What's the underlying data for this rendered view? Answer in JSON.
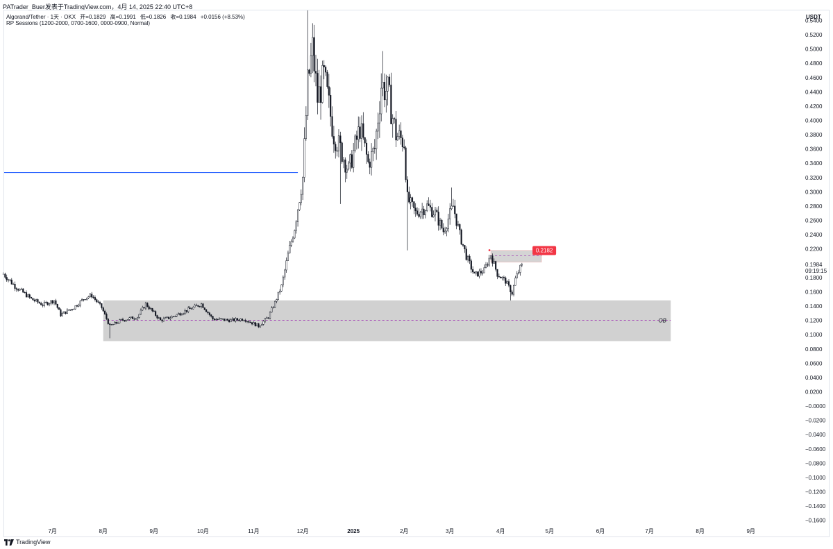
{
  "header": {
    "caption": "PATrader_Buer发表于TradingView.com，4月 14, 2025 22:40 UTC+8",
    "symbol": "Algorand/Tether · 1天 · OKX",
    "ohlc": {
      "open_label": "开=0.1829",
      "high_label": "高=0.1991",
      "low_label": "低=0.1826",
      "close_label": "收=0.1984",
      "change_label": "+0.0156 (+8.53%)"
    },
    "indicator": "RP Sessions (1200-2000, 0700-1600, 0000-0900, Normal)"
  },
  "footer": {
    "brand": "TradingView",
    "logo_icon": "tradingview-logo-icon"
  },
  "colors": {
    "candle": "#131722",
    "ob_box": "#d1d1d1",
    "blue_line": "#2962ff",
    "dashed_line": "#9c27b0",
    "price_label_bg": "#f23645"
  },
  "chart_data": {
    "type": "candlestick",
    "currency_label": "USDT",
    "ylim": [
      -0.17,
      0.555
    ],
    "y_ticks": [
      0.54,
      0.52,
      0.5,
      0.48,
      0.46,
      0.44,
      0.42,
      0.4,
      0.38,
      0.36,
      0.34,
      0.32,
      0.3,
      0.28,
      0.26,
      0.24,
      0.22,
      0.2,
      0.18,
      0.16,
      0.14,
      0.12,
      0.1,
      0.08,
      0.06,
      0.04,
      0.02,
      0.0,
      -0.02,
      -0.04,
      -0.06,
      -0.08,
      -0.1,
      -0.12,
      -0.14,
      -0.16
    ],
    "y_tick_labels": [
      "0.5400",
      "0.5200",
      "0.5000",
      "0.4800",
      "0.4600",
      "0.4400",
      "0.4200",
      "0.4000",
      "0.3800",
      "0.3600",
      "0.3400",
      "0.3200",
      "0.3000",
      "0.2800",
      "0.2600",
      "0.2400",
      "0.2200",
      "",
      "0.1800",
      "0.1600",
      "0.1400",
      "0.1200",
      "0.1000",
      "0.0800",
      "0.0600",
      "0.0400",
      "0.0200",
      "−0.0000",
      "−0.0200",
      "−0.0400",
      "−0.0600",
      "−0.0800",
      "−0.1000",
      "−0.1200",
      "−0.1400",
      "−0.1600"
    ],
    "x_range": [
      "2024-06-01",
      "2025-09-30"
    ],
    "x_ticks": [
      {
        "date": "2024-07-01",
        "label": "7月"
      },
      {
        "date": "2024-08-01",
        "label": "8月"
      },
      {
        "date": "2024-09-01",
        "label": "9月"
      },
      {
        "date": "2024-10-01",
        "label": "10月"
      },
      {
        "date": "2024-11-01",
        "label": "11月"
      },
      {
        "date": "2024-12-01",
        "label": "12月"
      },
      {
        "date": "2025-01-01",
        "label": "2025",
        "bold": true
      },
      {
        "date": "2025-02-01",
        "label": "2月"
      },
      {
        "date": "2025-03-01",
        "label": "3月"
      },
      {
        "date": "2025-04-01",
        "label": "4月"
      },
      {
        "date": "2025-05-01",
        "label": "5月"
      },
      {
        "date": "2025-06-01",
        "label": "6月"
      },
      {
        "date": "2025-07-01",
        "label": "7月"
      },
      {
        "date": "2025-08-01",
        "label": "8月"
      },
      {
        "date": "2025-09-01",
        "label": "9月"
      }
    ],
    "data_start": "2024-06-01",
    "data_end": "2025-04-14",
    "price_path": [
      [
        "2024-06-01",
        0.185
      ],
      [
        "2024-06-08",
        0.168
      ],
      [
        "2024-06-18",
        0.15
      ],
      [
        "2024-06-25",
        0.142
      ],
      [
        "2024-07-02",
        0.148
      ],
      [
        "2024-07-06",
        0.128
      ],
      [
        "2024-07-14",
        0.138
      ],
      [
        "2024-07-21",
        0.152
      ],
      [
        "2024-07-25",
        0.155
      ],
      [
        "2024-07-31",
        0.138
      ],
      [
        "2024-08-05",
        0.112
      ],
      [
        "2024-08-12",
        0.12
      ],
      [
        "2024-08-22",
        0.125
      ],
      [
        "2024-08-27",
        0.143
      ],
      [
        "2024-09-05",
        0.12
      ],
      [
        "2024-09-12",
        0.125
      ],
      [
        "2024-09-22",
        0.135
      ],
      [
        "2024-09-30",
        0.143
      ],
      [
        "2024-10-07",
        0.122
      ],
      [
        "2024-10-18",
        0.12
      ],
      [
        "2024-10-26",
        0.122
      ],
      [
        "2024-11-04",
        0.112
      ],
      [
        "2024-11-10",
        0.125
      ],
      [
        "2024-11-14",
        0.145
      ],
      [
        "2024-11-18",
        0.168
      ],
      [
        "2024-11-22",
        0.212
      ],
      [
        "2024-11-26",
        0.25
      ],
      [
        "2024-12-01",
        0.32
      ],
      [
        "2024-12-04",
        0.45
      ],
      [
        "2024-12-07",
        0.5
      ],
      [
        "2024-12-10",
        0.43
      ],
      [
        "2024-12-14",
        0.46
      ],
      [
        "2024-12-20",
        0.38
      ],
      [
        "2024-12-24",
        0.36
      ],
      [
        "2024-12-29",
        0.33
      ],
      [
        "2025-01-05",
        0.39
      ],
      [
        "2025-01-10",
        0.34
      ],
      [
        "2025-01-14",
        0.36
      ],
      [
        "2025-01-18",
        0.45
      ],
      [
        "2025-01-22",
        0.44
      ],
      [
        "2025-01-27",
        0.38
      ],
      [
        "2025-02-01",
        0.37
      ],
      [
        "2025-02-03",
        0.29
      ],
      [
        "2025-02-08",
        0.27
      ],
      [
        "2025-02-15",
        0.28
      ],
      [
        "2025-02-20",
        0.27
      ],
      [
        "2025-02-25",
        0.245
      ],
      [
        "2025-03-03",
        0.28
      ],
      [
        "2025-03-07",
        0.24
      ],
      [
        "2025-03-11",
        0.21
      ],
      [
        "2025-03-16",
        0.183
      ],
      [
        "2025-03-22",
        0.19
      ],
      [
        "2025-03-26",
        0.212
      ],
      [
        "2025-03-30",
        0.185
      ],
      [
        "2025-04-04",
        0.175
      ],
      [
        "2025-04-08",
        0.158
      ],
      [
        "2025-04-10",
        0.178
      ],
      [
        "2025-04-14",
        0.1984
      ]
    ],
    "spikes": [
      {
        "date": "2024-08-05",
        "low": 0.095
      },
      {
        "date": "2024-12-04",
        "high": 0.555
      },
      {
        "date": "2024-12-24",
        "low": 0.283
      },
      {
        "date": "2025-01-19",
        "high": 0.497
      },
      {
        "date": "2025-02-03",
        "low": 0.218
      },
      {
        "date": "2025-03-02",
        "high": 0.306
      },
      {
        "date": "2025-04-07",
        "low": 0.148
      }
    ],
    "ob_zone": {
      "start": "2024-08-01",
      "end": "2025-07-14",
      "top": 0.148,
      "bottom": 0.091,
      "mid": 0.12,
      "label": "OB"
    },
    "blue_level": {
      "start": "2024-06-01",
      "end": "2024-11-28",
      "value": 0.327
    },
    "resistance_zone": {
      "start": "2025-03-26",
      "end": "2025-04-26",
      "top": 0.218,
      "bottom": 0.2015,
      "marker": 0.2182
    },
    "resistance_label": "0.2182",
    "last_price": {
      "value": "0.1984",
      "countdown": "09:19:15"
    }
  }
}
